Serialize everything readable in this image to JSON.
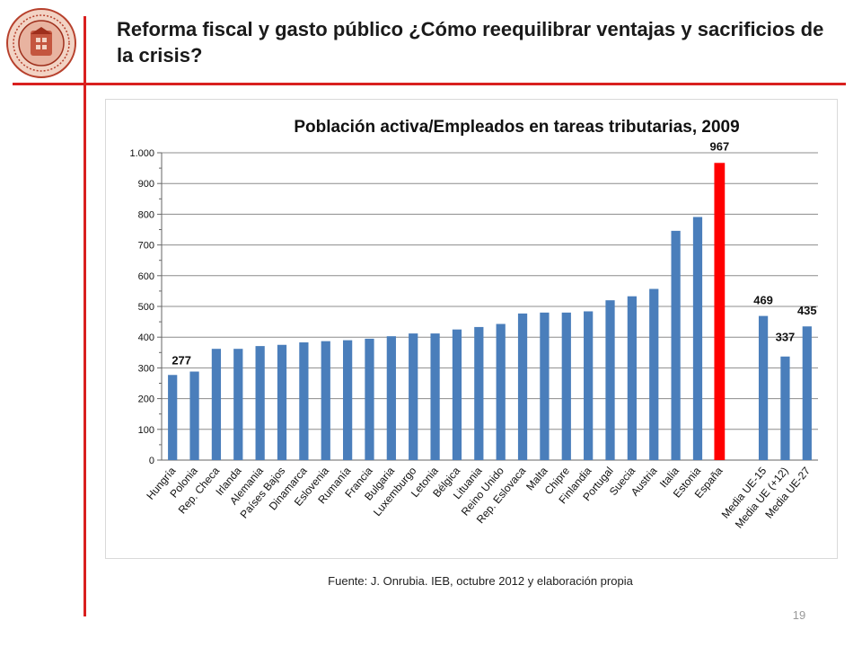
{
  "slide": {
    "title": "Reforma fiscal y gasto público ¿Cómo reequilibrar ventajas y sacrificios de la crisis?",
    "source": "Fuente:  J. Onrubia. IEB, octubre 2012 y elaboración propia",
    "page_number": "19",
    "accent_color": "#d9201f",
    "logo": "university-seal-icon"
  },
  "chart_data": {
    "type": "bar",
    "title": "Población activa/Empleados en tareas tributarias, 2009",
    "xlabel": "",
    "ylabel": "",
    "ylim": [
      0,
      1000
    ],
    "yticks": [
      0,
      100,
      200,
      300,
      400,
      500,
      600,
      700,
      800,
      900,
      1000
    ],
    "ytick_labels": [
      "0",
      "100",
      "200",
      "300",
      "400",
      "500",
      "600",
      "700",
      "800",
      "900",
      "1.000"
    ],
    "grid": true,
    "legend": "none",
    "bar_color": "#4a7ebb",
    "highlight_color": "#ff0000",
    "categories": [
      "Hungría",
      "Polonia",
      "Rep. Checa",
      "Irlanda",
      "Alemania",
      "Países Bajos",
      "Dinamarca",
      "Eslovenia",
      "Rumanía",
      "Francia",
      "Bulgaria",
      "Luxemburgo",
      "Letonia",
      "Bélgica",
      "Lituania",
      "Reino Unido",
      "Rep. Eslovaca",
      "Malta",
      "Chipre",
      "Finlandia",
      "Portugal",
      "Suecia",
      "Austria",
      "Italia",
      "Estonia",
      "España",
      "",
      "Media UE-15",
      "Media UE (+12)",
      "Media UE-27"
    ],
    "values": [
      277,
      288,
      362,
      362,
      371,
      375,
      383,
      387,
      390,
      395,
      403,
      412,
      412,
      425,
      433,
      443,
      477,
      480,
      480,
      484,
      520,
      533,
      557,
      746,
      791,
      967,
      null,
      469,
      337,
      435
    ],
    "highlight": [
      "España"
    ],
    "data_labels": [
      {
        "category": "Hungría",
        "text": "277"
      },
      {
        "category": "España",
        "text": "967"
      },
      {
        "category": "Media UE-15",
        "text": "469"
      },
      {
        "category": "Media UE (+12)",
        "text": "337"
      },
      {
        "category": "Media UE-27",
        "text": "435"
      }
    ]
  }
}
